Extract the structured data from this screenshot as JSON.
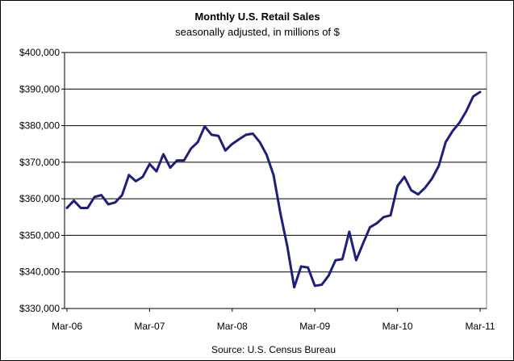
{
  "chart_data": {
    "type": "line",
    "title": "Monthly U.S. Retail Sales",
    "subtitle": "seasonally adjusted, in millions of $",
    "source": "Source: U.S. Census Bureau",
    "xlabel": "",
    "ylabel": "",
    "ylim": [
      330000,
      400000
    ],
    "yticks": [
      330000,
      340000,
      350000,
      360000,
      370000,
      380000,
      390000,
      400000
    ],
    "ytick_labels": [
      "$330,000",
      "$340,000",
      "$350,000",
      "$360,000",
      "$370,000",
      "$380,000",
      "$390,000",
      "$400,000"
    ],
    "xticks": [
      "Mar-06",
      "Mar-07",
      "Mar-08",
      "Mar-09",
      "Mar-10",
      "Mar-11"
    ],
    "grid": true,
    "legend": "none",
    "line_color": "#1f1f7a",
    "series": [
      {
        "values": [
          357500,
          359500,
          357500,
          357500,
          360500,
          361000,
          358500,
          359000,
          361000,
          366500,
          364800,
          366000,
          369500,
          367500,
          372200,
          368500,
          370500,
          370500,
          373700,
          375500,
          379800,
          377500,
          377200,
          373200,
          375000,
          376300,
          377500,
          377800,
          375500,
          372000,
          366500,
          356000,
          347000,
          335800,
          341500,
          341200,
          336200,
          336500,
          339000,
          343200,
          343500,
          351000,
          343200,
          347800,
          352200,
          353300,
          355000,
          355500,
          363500,
          366000,
          362300,
          361200,
          363000,
          365500,
          369000,
          375500,
          378500,
          380800,
          384000,
          388000,
          389200
        ]
      }
    ]
  }
}
